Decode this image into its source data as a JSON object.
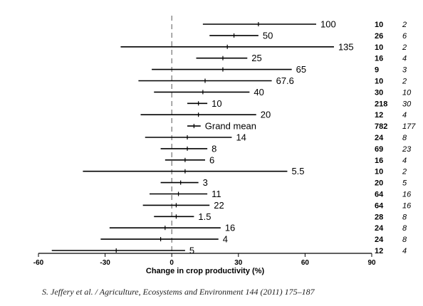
{
  "chart_data": {
    "type": "forest",
    "xlabel": "Change in crop productivity (%)",
    "xlim": [
      -60,
      90
    ],
    "xticks": [
      "-60",
      "-30",
      "0",
      "30",
      "60",
      "90"
    ],
    "reference_line": 0,
    "rows": [
      {
        "label": "100",
        "lower": 14,
        "upper": 65,
        "mean": 39,
        "n_obs": "10",
        "n_studies": "2"
      },
      {
        "label": "50",
        "lower": 17,
        "upper": 39,
        "mean": 28,
        "n_obs": "26",
        "n_studies": "6"
      },
      {
        "label": "135",
        "lower": -23,
        "upper": 73,
        "mean": 25,
        "n_obs": "10",
        "n_studies": "2"
      },
      {
        "label": "25",
        "lower": 11,
        "upper": 34,
        "mean": 23,
        "n_obs": "16",
        "n_studies": "4"
      },
      {
        "label": "65",
        "lower": -9,
        "upper": 54,
        "mean": 23,
        "n_obs": "9",
        "n_studies": "3"
      },
      {
        "label": "67.6",
        "lower": -15,
        "upper": 45,
        "mean": 15,
        "n_obs": "10",
        "n_studies": "2"
      },
      {
        "label": "40",
        "lower": -8,
        "upper": 35,
        "mean": 14,
        "n_obs": "30",
        "n_studies": "10"
      },
      {
        "label": "10",
        "lower": 7,
        "upper": 16,
        "mean": 12,
        "n_obs": "218",
        "n_studies": "30"
      },
      {
        "label": "20",
        "lower": -14,
        "upper": 38,
        "mean": 12,
        "n_obs": "12",
        "n_studies": "4"
      },
      {
        "label": "Grand mean",
        "lower": 7,
        "upper": 13,
        "mean": 10,
        "n_obs": "782",
        "n_studies": "177"
      },
      {
        "label": "14",
        "lower": -12,
        "upper": 27,
        "mean": 7,
        "n_obs": "24",
        "n_studies": "8"
      },
      {
        "label": "8",
        "lower": -5,
        "upper": 16,
        "mean": 7,
        "n_obs": "69",
        "n_studies": "23"
      },
      {
        "label": "6",
        "lower": -3,
        "upper": 15,
        "mean": 6,
        "n_obs": "16",
        "n_studies": "4"
      },
      {
        "label": "5.5",
        "lower": -40,
        "upper": 52,
        "mean": 6,
        "n_obs": "10",
        "n_studies": "2"
      },
      {
        "label": "3",
        "lower": -5,
        "upper": 12,
        "mean": 4,
        "n_obs": "20",
        "n_studies": "5"
      },
      {
        "label": "11",
        "lower": -10,
        "upper": 16,
        "mean": 3,
        "n_obs": "64",
        "n_studies": "16"
      },
      {
        "label": "22",
        "lower": -13,
        "upper": 17,
        "mean": 2,
        "n_obs": "64",
        "n_studies": "16"
      },
      {
        "label": "1.5",
        "lower": -8,
        "upper": 10,
        "mean": 2,
        "n_obs": "28",
        "n_studies": "8"
      },
      {
        "label": "16",
        "lower": -28,
        "upper": 22,
        "mean": -3,
        "n_obs": "24",
        "n_studies": "8"
      },
      {
        "label": "4",
        "lower": -32,
        "upper": 21,
        "mean": -5,
        "n_obs": "24",
        "n_studies": "8"
      },
      {
        "label": "5",
        "lower": -54,
        "upper": 6,
        "mean": -25,
        "n_obs": "12",
        "n_studies": "4"
      }
    ]
  },
  "caption": "S. Jeffery et al. / Agriculture, Ecosystems and Environment 144 (2011) 175–187"
}
